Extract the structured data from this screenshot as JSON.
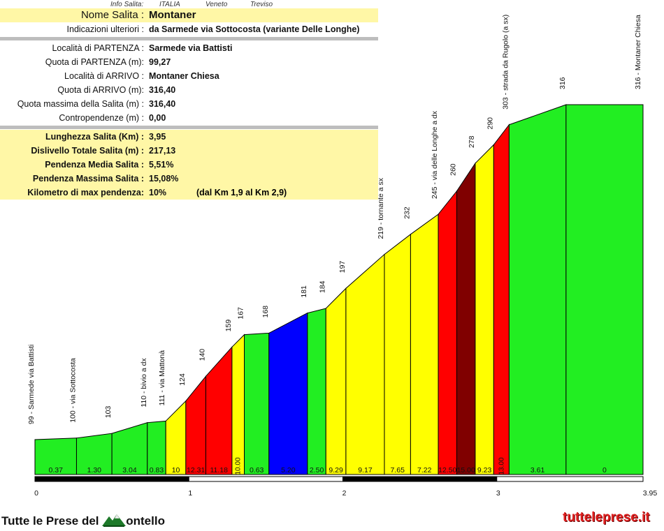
{
  "header": {
    "info_label": "Info Salita:",
    "country": "ITALIA",
    "region": "Veneto",
    "province": "Treviso"
  },
  "info": {
    "nome_label": "Nome Salita :",
    "nome_value": "Montaner",
    "indicazioni_label": "Indicazioni ulteriori :",
    "indicazioni_value": "da Sarmede via Sottocosta (variante Delle Longhe)",
    "partenza_label": "Località di PARTENZA :",
    "partenza_value": "Sarmede via Battisti",
    "quota_partenza_label": "Quota di PARTENZA (m):",
    "quota_partenza_value": "99,27",
    "arrivo_label": "Località di ARRIVO :",
    "arrivo_value": "Montaner Chiesa",
    "quota_arrivo_label": "Quota di ARRIVO (m):",
    "quota_arrivo_value": "316,40",
    "quota_max_label": "Quota massima della Salita (m) :",
    "quota_max_value": "316,40",
    "contropendenze_label": "Contropendenze (m) :",
    "contropendenze_value": "0,00",
    "lunghezza_label": "Lunghezza Salita (Km) :",
    "lunghezza_value": "3,95",
    "dislivello_label": "Dislivello Totale Salita (m) :",
    "dislivello_value": "217,13",
    "pend_media_label": "Pendenza Media Salita :",
    "pend_media_value": "5,51%",
    "pend_max_label": "Pendenza Massima Salita :",
    "pend_max_value": "15,08%",
    "km_max_label": "Kilometro di max pendenza:",
    "km_max_value": "10%",
    "km_max_range": "(dal Km 1,9 al Km 2,9)"
  },
  "footer": {
    "left_text_1": "Tutte le Prese del",
    "left_text_2": "ontello",
    "right_text": "tutteleprese.it"
  },
  "colors": {
    "green": "#22ee22",
    "yellow": "#ffff00",
    "red": "#ff0000",
    "darkred": "#800000",
    "blue": "#0000ff",
    "info_yellow": "#fff7a6"
  },
  "chart_data": {
    "type": "area",
    "xlim": [
      0,
      3.95
    ],
    "ylim": [
      0,
      316
    ],
    "x_ticks": [
      "0",
      "1",
      "2",
      "3",
      "3.95"
    ],
    "x_tick_values": [
      0,
      1,
      2,
      3,
      3.95
    ],
    "points": [
      {
        "x": 0.0,
        "y": 99
      },
      {
        "x": 0.27,
        "y": 100
      },
      {
        "x": 0.5,
        "y": 103
      },
      {
        "x": 0.73,
        "y": 110
      },
      {
        "x": 0.85,
        "y": 111
      },
      {
        "x": 0.98,
        "y": 124
      },
      {
        "x": 1.11,
        "y": 140
      },
      {
        "x": 1.28,
        "y": 159
      },
      {
        "x": 1.36,
        "y": 167
      },
      {
        "x": 1.52,
        "y": 168
      },
      {
        "x": 1.77,
        "y": 181
      },
      {
        "x": 1.89,
        "y": 184
      },
      {
        "x": 2.02,
        "y": 197
      },
      {
        "x": 2.27,
        "y": 219
      },
      {
        "x": 2.44,
        "y": 232
      },
      {
        "x": 2.62,
        "y": 245
      },
      {
        "x": 2.74,
        "y": 260
      },
      {
        "x": 2.86,
        "y": 278
      },
      {
        "x": 2.98,
        "y": 290
      },
      {
        "x": 3.08,
        "y": 303
      },
      {
        "x": 3.45,
        "y": 316
      },
      {
        "x": 3.95,
        "y": 316
      }
    ],
    "segments": [
      {
        "grade": "0.37",
        "color": "green"
      },
      {
        "grade": "1.30",
        "color": "green"
      },
      {
        "grade": "3.04",
        "color": "green"
      },
      {
        "grade": "0.83",
        "color": "green"
      },
      {
        "grade": "10",
        "color": "yellow"
      },
      {
        "grade": "12.31",
        "color": "red"
      },
      {
        "grade": "11.18",
        "color": "red"
      },
      {
        "grade": "10.00",
        "color": "yellow"
      },
      {
        "grade": "0.63",
        "color": "green"
      },
      {
        "grade": "5.20",
        "color": "blue"
      },
      {
        "grade": "2.50",
        "color": "green"
      },
      {
        "grade": "9.29",
        "color": "yellow"
      },
      {
        "grade": "9.17",
        "color": "yellow"
      },
      {
        "grade": "7.65",
        "color": "yellow"
      },
      {
        "grade": "7.22",
        "color": "yellow"
      },
      {
        "grade": "12.50",
        "color": "red"
      },
      {
        "grade": "15.00",
        "color": "darkred"
      },
      {
        "grade": "9.23",
        "color": "yellow"
      },
      {
        "grade": "13.00",
        "color": "red"
      },
      {
        "grade": "3.61",
        "color": "green"
      },
      {
        "grade": "0",
        "color": "green"
      }
    ],
    "point_labels": [
      "99 - Sarmede via Battisti",
      "100 - via Sottocosta",
      "103",
      "110 - bivio a dx",
      "111 - via Mattonà",
      "124",
      "140",
      "159",
      "167",
      "168",
      "181",
      "184",
      "197",
      "219 - tornante a sx",
      "232",
      "245 - via delle Longhe a dx",
      "260",
      "278",
      "290",
      "303 - strada da Rugolo (a sx)",
      "316",
      "316 - Montaner Chiesa"
    ]
  }
}
